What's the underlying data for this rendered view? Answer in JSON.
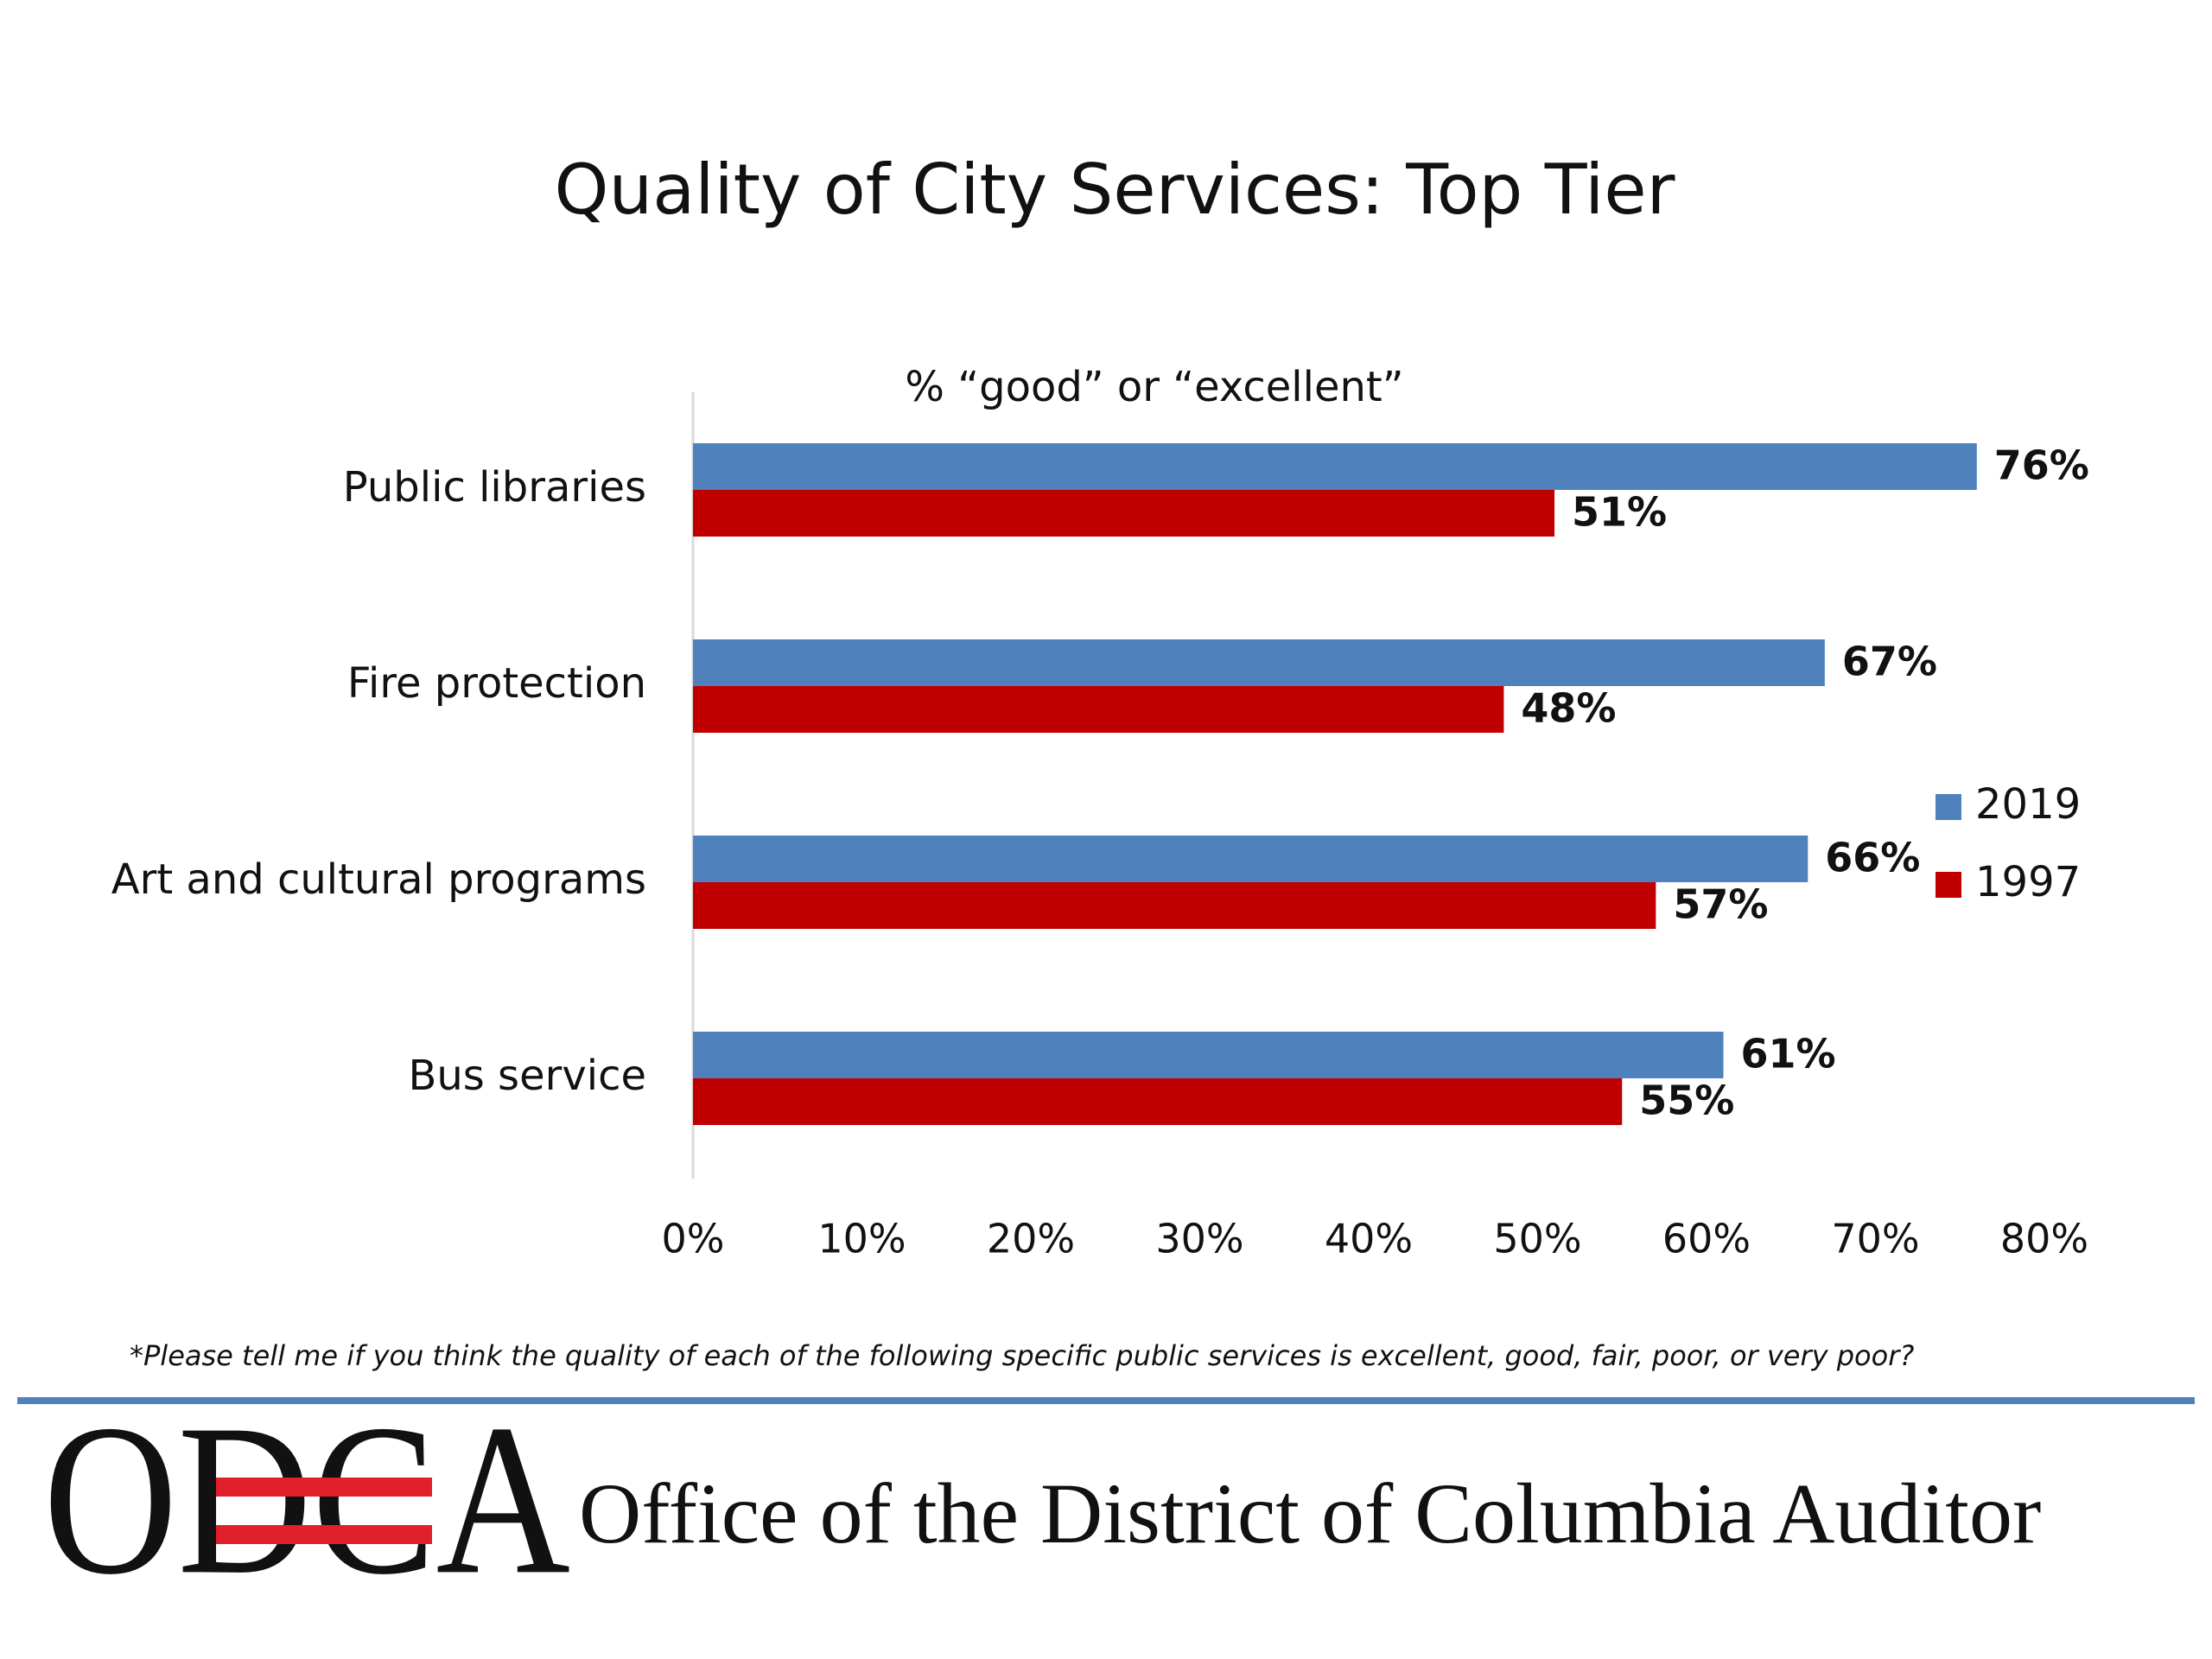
{
  "chart_data": {
    "type": "bar",
    "orientation": "horizontal",
    "title": "Quality of City Services: Top Tier",
    "subtitle": "% “good” or “excellent”",
    "categories": [
      "Public libraries",
      "Fire protection",
      "Art and cultural programs",
      "Bus service"
    ],
    "series": [
      {
        "name": "2019",
        "color": "#4f81bd",
        "values": [
          76,
          67,
          66,
          61
        ],
        "value_labels": [
          "76%",
          "67%",
          "66%",
          "61%"
        ]
      },
      {
        "name": "1997",
        "color": "#c00000",
        "values": [
          51,
          48,
          57,
          55
        ],
        "value_labels": [
          "51%",
          "48%",
          "57%",
          "55%"
        ]
      }
    ],
    "xlim": [
      0,
      80
    ],
    "xticks": [
      {
        "value": 0,
        "label": "0%"
      },
      {
        "value": 10,
        "label": "10%"
      },
      {
        "value": 20,
        "label": "20%"
      },
      {
        "value": 30,
        "label": "30%"
      },
      {
        "value": 40,
        "label": "40%"
      },
      {
        "value": 50,
        "label": "50%"
      },
      {
        "value": 60,
        "label": "60%"
      },
      {
        "value": 70,
        "label": "70%"
      },
      {
        "value": 80,
        "label": "80%"
      }
    ],
    "grid": false,
    "legend": "right"
  },
  "footnote": "*Please tell me if you think the quality of each of the following specific public services is excellent, good, fair, poor, or very poor?",
  "logo": {
    "mark": "ODCA",
    "name": "Office of the District of Columbia Auditor"
  }
}
